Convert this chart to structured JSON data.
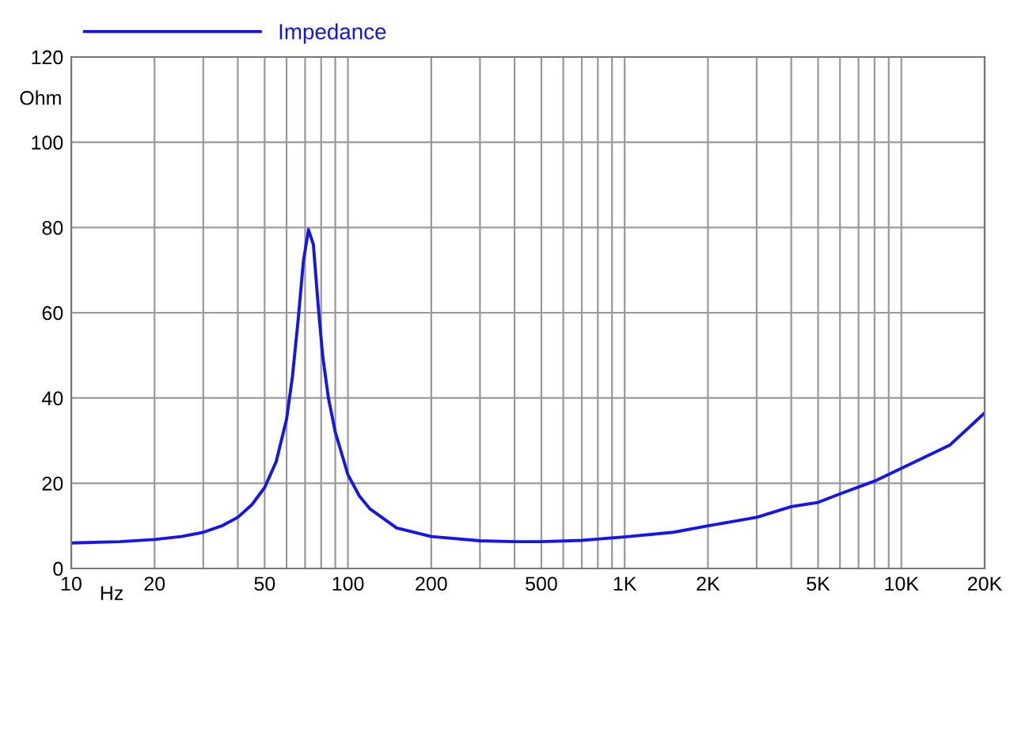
{
  "chart_data": {
    "type": "line",
    "xlabel": "Hz",
    "ylabel": "Ohm",
    "log": "x",
    "x": [
      10,
      15,
      20,
      25,
      30,
      35,
      40,
      45,
      50,
      55,
      60,
      63,
      66,
      69,
      72,
      75,
      78,
      81,
      85,
      90,
      100,
      110,
      120,
      150,
      200,
      300,
      400,
      500,
      700,
      1000,
      1500,
      2000,
      3000,
      4000,
      5000,
      6000,
      8000,
      10000,
      15000,
      20000
    ],
    "series": [
      {
        "name": "Impedance",
        "color": "#1414f0",
        "values": [
          6,
          6.3,
          6.8,
          7.5,
          8.5,
          10,
          12,
          15,
          19,
          25,
          35,
          45,
          58,
          72,
          79.5,
          76,
          62,
          50,
          40,
          32,
          22,
          17,
          14,
          9.5,
          7.5,
          6.5,
          6.3,
          6.3,
          6.6,
          7.4,
          8.5,
          10,
          12,
          14.5,
          15.5,
          17.5,
          20.5,
          23.5,
          29,
          36.5
        ]
      }
    ],
    "xlim": [
      10,
      20000
    ],
    "ylim": [
      0,
      120
    ],
    "xticks": [
      10,
      20,
      50,
      100,
      200,
      500,
      {
        "value": 1000,
        "label": "1K"
      },
      {
        "value": 2000,
        "label": "2K"
      },
      {
        "value": 5000,
        "label": "5K"
      },
      {
        "value": 10000,
        "label": "10K"
      },
      {
        "value": 20000,
        "label": "20K"
      },
      {
        "value": 30,
        "label": null
      },
      {
        "value": 40,
        "label": null
      },
      {
        "value": 60,
        "label": null
      },
      {
        "value": 70,
        "label": null
      },
      {
        "value": 80,
        "label": null
      },
      {
        "value": 90,
        "label": null
      },
      {
        "value": 300,
        "label": null
      },
      {
        "value": 400,
        "label": null
      },
      {
        "value": 600,
        "label": null
      },
      {
        "value": 700,
        "label": null
      },
      {
        "value": 800,
        "label": null
      },
      {
        "value": 900,
        "label": null
      },
      {
        "value": 3000,
        "label": null
      },
      {
        "value": 4000,
        "label": null
      },
      {
        "value": 6000,
        "label": null
      },
      {
        "value": 7000,
        "label": null
      },
      {
        "value": 8000,
        "label": null
      },
      {
        "value": 9000,
        "label": null
      }
    ],
    "yticks": [
      0,
      20,
      40,
      60,
      80,
      100,
      120
    ],
    "grid": true,
    "legend": "top left"
  }
}
